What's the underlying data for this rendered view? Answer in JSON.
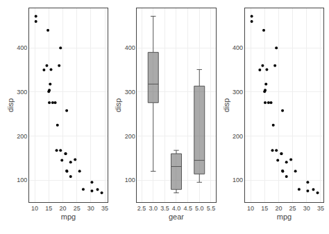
{
  "chart_data": [
    {
      "type": "scatter",
      "x": [
        21.0,
        21.0,
        22.8,
        21.4,
        18.7,
        18.1,
        14.3,
        24.4,
        22.8,
        19.2,
        17.8,
        16.4,
        17.3,
        15.2,
        10.4,
        10.4,
        14.7,
        32.4,
        30.4,
        33.9,
        21.5,
        15.5,
        15.2,
        13.3,
        19.2,
        27.3,
        26.0,
        30.4,
        15.8,
        19.7,
        15.0,
        21.4
      ],
      "values": [
        160.0,
        160.0,
        108.0,
        258.0,
        360.0,
        225.0,
        360.0,
        146.7,
        140.8,
        167.6,
        167.6,
        275.8,
        275.8,
        275.8,
        472.0,
        460.0,
        440.0,
        78.7,
        75.7,
        71.1,
        120.1,
        318.0,
        304.0,
        350.0,
        400.0,
        79.0,
        120.3,
        95.1,
        351.0,
        145.0,
        301.0,
        121.0
      ],
      "color": "#000000",
      "xlabel": "mpg",
      "ylabel": "disp",
      "xlim": [
        8,
        36
      ],
      "ylim": [
        50,
        490
      ],
      "xticks": [
        10,
        15,
        20,
        25,
        30,
        35
      ],
      "yticks": [
        100,
        200,
        300,
        400
      ],
      "grid": true
    },
    {
      "type": "box",
      "x": [
        3,
        4,
        5
      ],
      "values": [
        [
          258.0,
          360.0,
          225.0,
          360.0,
          275.8,
          275.8,
          275.8,
          472.0,
          460.0,
          440.0,
          120.1,
          318.0,
          304.0,
          350.0,
          400.0
        ],
        [
          160.0,
          160.0,
          108.0,
          146.7,
          140.8,
          167.6,
          167.6,
          78.7,
          75.7,
          71.1,
          79.0,
          121.0
        ],
        [
          120.3,
          95.1,
          351.0,
          145.0,
          301.0
        ]
      ],
      "color": "#555555",
      "xlabel": "gear",
      "ylabel": "disp",
      "xlim": [
        2.3,
        5.7
      ],
      "ylim": [
        50,
        490
      ],
      "xticks": [
        2.5,
        {
          "value": 3.0,
          "label": "3.0"
        },
        3.5,
        {
          "value": 4.0,
          "label": "4.0"
        },
        4.5,
        {
          "value": 5.0,
          "label": "5.0"
        },
        5.5
      ],
      "yticks": [
        100,
        200,
        300,
        400
      ],
      "grid": true
    },
    {
      "type": "scatter",
      "x": [
        21.0,
        21.0,
        22.8,
        21.4,
        18.7,
        18.1,
        14.3,
        24.4,
        22.8,
        19.2,
        17.8,
        16.4,
        17.3,
        15.2,
        10.4,
        10.4,
        14.7,
        32.4,
        30.4,
        33.9,
        21.5,
        15.5,
        15.2,
        13.3,
        19.2,
        27.3,
        26.0,
        30.4,
        15.8,
        19.7,
        15.0,
        21.4
      ],
      "values": [
        160.0,
        160.0,
        108.0,
        258.0,
        360.0,
        225.0,
        360.0,
        146.7,
        140.8,
        167.6,
        167.6,
        275.8,
        275.8,
        275.8,
        472.0,
        460.0,
        440.0,
        78.7,
        75.7,
        71.1,
        120.1,
        318.0,
        304.0,
        350.0,
        400.0,
        79.0,
        120.3,
        95.1,
        351.0,
        145.0,
        301.0,
        121.0
      ],
      "color": "#000000",
      "xlabel": "mpg",
      "ylabel": "disp",
      "xlim": [
        8,
        36
      ],
      "ylim": [
        50,
        490
      ],
      "xticks": [
        10,
        15,
        20,
        25,
        30,
        35
      ],
      "yticks": [
        100,
        200,
        300,
        400
      ],
      "grid": true
    }
  ]
}
